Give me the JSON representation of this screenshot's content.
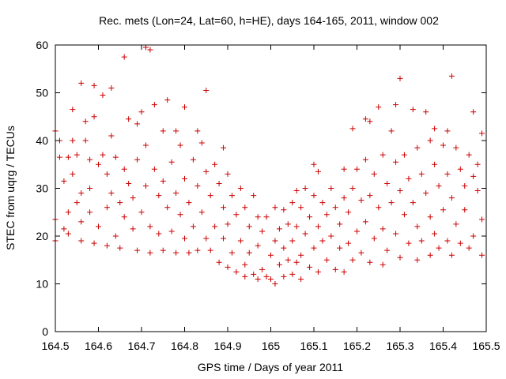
{
  "chart_data": {
    "type": "scatter",
    "title": "Rec. mets (Lon=24, Lat=60, h=HE), days 164-165, 2011, window 002",
    "xlabel": "GPS time / Days of year 2011",
    "ylabel": "STEC from uqrg / TECUs",
    "xlim": [
      164.5,
      165.5
    ],
    "ylim": [
      0,
      60
    ],
    "xticks": [
      "164.5",
      "164.6",
      "164.7",
      "164.8",
      "164.9",
      "165",
      "165.1",
      "165.2",
      "165.3",
      "165.4",
      "165.5"
    ],
    "yticks": [
      "0",
      "10",
      "20",
      "30",
      "40",
      "50",
      "60"
    ],
    "grid": false,
    "legend": "none",
    "marker": "plus",
    "color": "#cc0000",
    "series": [
      {
        "points": [
          [
            164.5,
            19.0
          ],
          [
            164.5,
            23.5
          ],
          [
            164.51,
            36.5
          ],
          [
            164.5,
            42.0
          ],
          [
            164.51,
            40.0
          ],
          [
            164.52,
            31.5
          ],
          [
            164.52,
            21.5
          ],
          [
            164.53,
            25.0
          ],
          [
            164.53,
            36.5
          ],
          [
            164.53,
            20.5
          ],
          [
            164.54,
            46.5
          ],
          [
            164.54,
            40.0
          ],
          [
            164.54,
            33.0
          ],
          [
            164.55,
            27.0
          ],
          [
            164.55,
            37.0
          ],
          [
            164.56,
            52.0
          ],
          [
            164.56,
            29.0
          ],
          [
            164.56,
            23.0
          ],
          [
            164.56,
            19.0
          ],
          [
            164.57,
            44.0
          ],
          [
            164.57,
            40.0
          ],
          [
            164.58,
            36.0
          ],
          [
            164.58,
            30.0
          ],
          [
            164.58,
            25.0
          ],
          [
            164.59,
            51.5
          ],
          [
            164.59,
            45.0
          ],
          [
            164.59,
            18.5
          ],
          [
            164.6,
            35.0
          ],
          [
            164.6,
            22.0
          ],
          [
            164.61,
            49.5
          ],
          [
            164.61,
            37.0
          ],
          [
            164.62,
            33.0
          ],
          [
            164.62,
            26.0
          ],
          [
            164.62,
            18.0
          ],
          [
            164.63,
            51.0
          ],
          [
            164.63,
            41.0
          ],
          [
            164.63,
            29.0
          ],
          [
            164.64,
            36.5
          ],
          [
            164.64,
            20.0
          ],
          [
            164.65,
            27.0
          ],
          [
            164.65,
            17.5
          ],
          [
            164.66,
            57.5
          ],
          [
            164.66,
            34.0
          ],
          [
            164.66,
            24.0
          ],
          [
            164.67,
            44.5
          ],
          [
            164.67,
            31.0
          ],
          [
            164.68,
            28.0
          ],
          [
            164.68,
            21.5
          ],
          [
            164.69,
            43.5
          ],
          [
            164.69,
            36.0
          ],
          [
            164.69,
            17.0
          ],
          [
            164.7,
            46.0
          ],
          [
            164.7,
            25.0
          ],
          [
            164.71,
            59.5
          ],
          [
            164.71,
            39.0
          ],
          [
            164.71,
            30.5
          ],
          [
            164.72,
            59.0
          ],
          [
            164.72,
            22.0
          ],
          [
            164.72,
            16.5
          ],
          [
            164.73,
            47.5
          ],
          [
            164.73,
            34.0
          ],
          [
            164.74,
            28.5
          ],
          [
            164.74,
            20.5
          ],
          [
            164.75,
            42.0
          ],
          [
            164.75,
            31.5
          ],
          [
            164.75,
            17.0
          ],
          [
            164.76,
            48.5
          ],
          [
            164.76,
            26.0
          ],
          [
            164.77,
            35.5
          ],
          [
            164.77,
            21.0
          ],
          [
            164.78,
            42.0
          ],
          [
            164.78,
            29.0
          ],
          [
            164.78,
            16.5
          ],
          [
            164.79,
            39.0
          ],
          [
            164.79,
            24.5
          ],
          [
            164.8,
            47.0
          ],
          [
            164.8,
            32.0
          ],
          [
            164.8,
            19.5
          ],
          [
            164.81,
            27.0
          ],
          [
            164.81,
            16.5
          ],
          [
            164.82,
            36.0
          ],
          [
            164.82,
            22.0
          ],
          [
            164.83,
            42.0
          ],
          [
            164.83,
            30.5
          ],
          [
            164.83,
            17.0
          ],
          [
            164.84,
            39.5
          ],
          [
            164.84,
            25.0
          ],
          [
            164.85,
            50.5
          ],
          [
            164.85,
            33.5
          ],
          [
            164.85,
            19.5
          ],
          [
            164.86,
            28.5
          ],
          [
            164.86,
            17.0
          ],
          [
            164.87,
            35.0
          ],
          [
            164.87,
            22.0
          ],
          [
            164.88,
            31.0
          ],
          [
            164.88,
            14.5
          ],
          [
            164.89,
            38.5
          ],
          [
            164.89,
            26.0
          ],
          [
            164.89,
            19.5
          ],
          [
            164.9,
            33.0
          ],
          [
            164.9,
            22.5
          ],
          [
            164.9,
            13.5
          ],
          [
            164.91,
            28.5
          ],
          [
            164.91,
            16.5
          ],
          [
            164.92,
            24.5
          ],
          [
            164.92,
            12.5
          ],
          [
            164.93,
            30.0
          ],
          [
            164.93,
            19.0
          ],
          [
            164.94,
            26.0
          ],
          [
            164.94,
            14.0
          ],
          [
            164.94,
            11.5
          ],
          [
            164.95,
            22.0
          ],
          [
            164.95,
            16.5
          ],
          [
            164.96,
            28.5
          ],
          [
            164.96,
            12.0
          ],
          [
            164.97,
            24.0
          ],
          [
            164.97,
            18.0
          ],
          [
            164.97,
            11.0
          ],
          [
            164.98,
            21.0
          ],
          [
            164.98,
            13.0
          ],
          [
            164.99,
            24.0
          ],
          [
            164.99,
            11.5
          ],
          [
            165.0,
            16.0
          ],
          [
            165.0,
            11.0
          ],
          [
            165.01,
            26.0
          ],
          [
            165.01,
            19.0
          ],
          [
            165.01,
            10.0
          ],
          [
            165.02,
            21.5
          ],
          [
            165.02,
            14.0
          ],
          [
            165.03,
            25.5
          ],
          [
            165.03,
            17.5
          ],
          [
            165.03,
            11.5
          ],
          [
            165.04,
            22.5
          ],
          [
            165.04,
            15.0
          ],
          [
            165.05,
            27.0
          ],
          [
            165.05,
            19.0
          ],
          [
            165.05,
            12.0
          ],
          [
            165.06,
            29.5
          ],
          [
            165.06,
            22.0
          ],
          [
            165.06,
            14.5
          ],
          [
            165.07,
            26.0
          ],
          [
            165.07,
            16.0
          ],
          [
            165.07,
            11.0
          ],
          [
            165.08,
            30.0
          ],
          [
            165.08,
            20.5
          ],
          [
            165.09,
            24.0
          ],
          [
            165.09,
            13.5
          ],
          [
            165.1,
            35.0
          ],
          [
            165.1,
            28.5
          ],
          [
            165.1,
            17.5
          ],
          [
            165.11,
            33.5
          ],
          [
            165.11,
            22.0
          ],
          [
            165.11,
            12.5
          ],
          [
            165.12,
            27.0
          ],
          [
            165.12,
            19.0
          ],
          [
            165.13,
            24.5
          ],
          [
            165.13,
            15.0
          ],
          [
            165.14,
            30.0
          ],
          [
            165.14,
            20.0
          ],
          [
            165.15,
            26.0
          ],
          [
            165.15,
            13.0
          ],
          [
            165.16,
            22.5
          ],
          [
            165.16,
            17.5
          ],
          [
            165.17,
            34.0
          ],
          [
            165.17,
            28.0
          ],
          [
            165.17,
            12.5
          ],
          [
            165.18,
            25.0
          ],
          [
            165.18,
            18.5
          ],
          [
            165.19,
            42.5
          ],
          [
            165.19,
            30.0
          ],
          [
            165.19,
            15.0
          ],
          [
            165.2,
            34.0
          ],
          [
            165.2,
            21.0
          ],
          [
            165.21,
            27.5
          ],
          [
            165.21,
            16.5
          ],
          [
            165.22,
            44.5
          ],
          [
            165.22,
            36.0
          ],
          [
            165.22,
            23.0
          ],
          [
            165.23,
            44.0
          ],
          [
            165.23,
            28.5
          ],
          [
            165.23,
            14.5
          ],
          [
            165.24,
            33.0
          ],
          [
            165.24,
            19.5
          ],
          [
            165.25,
            47.0
          ],
          [
            165.25,
            26.0
          ],
          [
            165.26,
            37.0
          ],
          [
            165.26,
            21.5
          ],
          [
            165.26,
            14.0
          ],
          [
            165.27,
            31.0
          ],
          [
            165.27,
            17.0
          ],
          [
            165.28,
            42.0
          ],
          [
            165.28,
            27.0
          ],
          [
            165.29,
            47.5
          ],
          [
            165.29,
            35.5
          ],
          [
            165.29,
            20.5
          ],
          [
            165.3,
            53.0
          ],
          [
            165.3,
            29.5
          ],
          [
            165.3,
            15.5
          ],
          [
            165.31,
            37.0
          ],
          [
            165.31,
            24.5
          ],
          [
            165.32,
            32.0
          ],
          [
            165.32,
            18.5
          ],
          [
            165.33,
            46.5
          ],
          [
            165.33,
            27.0
          ],
          [
            165.34,
            38.5
          ],
          [
            165.34,
            22.0
          ],
          [
            165.34,
            15.0
          ],
          [
            165.35,
            33.0
          ],
          [
            165.35,
            19.0
          ],
          [
            165.36,
            46.0
          ],
          [
            165.36,
            29.0
          ],
          [
            165.37,
            40.0
          ],
          [
            165.37,
            24.0
          ],
          [
            165.37,
            16.0
          ],
          [
            165.38,
            42.5
          ],
          [
            165.38,
            35.0
          ],
          [
            165.38,
            20.5
          ],
          [
            165.39,
            30.5
          ],
          [
            165.39,
            17.5
          ],
          [
            165.4,
            39.0
          ],
          [
            165.4,
            25.5
          ],
          [
            165.41,
            42.0
          ],
          [
            165.41,
            33.0
          ],
          [
            165.41,
            19.0
          ],
          [
            165.42,
            53.5
          ],
          [
            165.42,
            28.0
          ],
          [
            165.42,
            16.0
          ],
          [
            165.43,
            38.5
          ],
          [
            165.43,
            22.5
          ],
          [
            165.44,
            34.0
          ],
          [
            165.44,
            18.5
          ],
          [
            165.45,
            30.5
          ],
          [
            165.45,
            25.5
          ],
          [
            165.46,
            37.0
          ],
          [
            165.46,
            17.5
          ],
          [
            165.47,
            46.0
          ],
          [
            165.47,
            32.5
          ],
          [
            165.47,
            20.0
          ],
          [
            165.48,
            35.0
          ],
          [
            165.48,
            29.5
          ],
          [
            165.49,
            41.5
          ],
          [
            165.49,
            23.5
          ],
          [
            165.49,
            16.0
          ]
        ]
      }
    ]
  }
}
